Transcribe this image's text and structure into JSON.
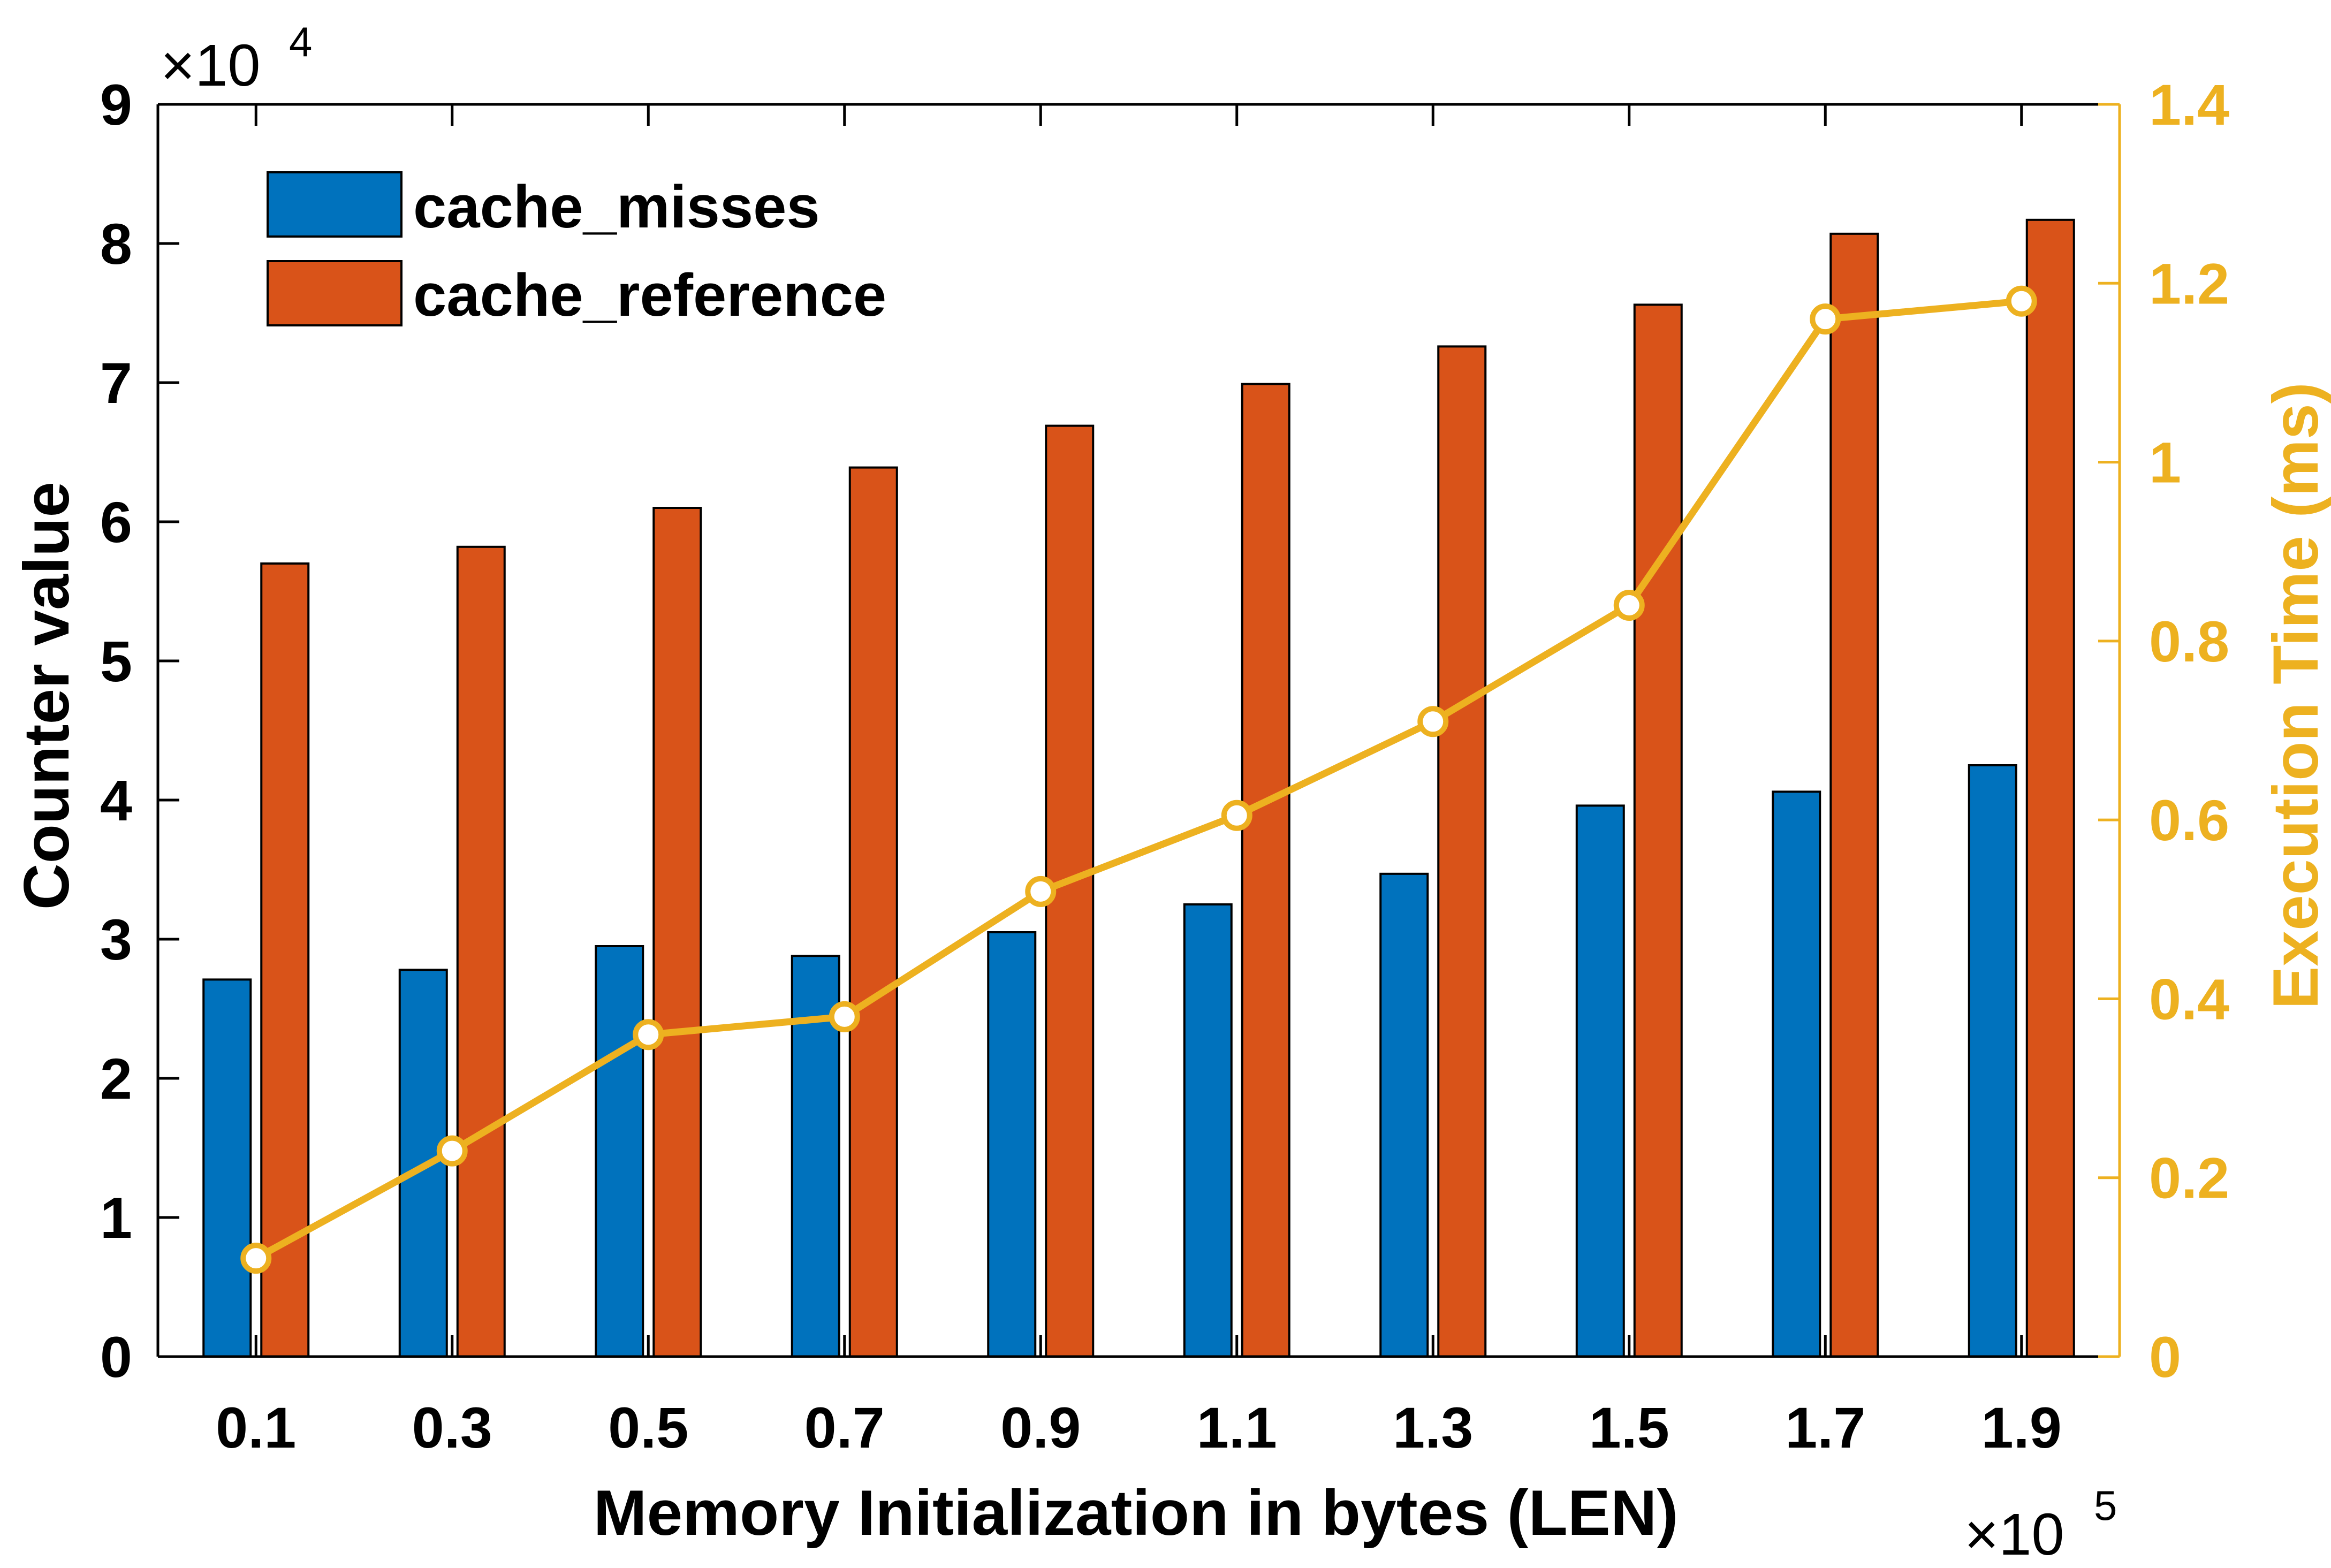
{
  "chart_data": {
    "type": "bar",
    "categories": [
      "0.1",
      "0.3",
      "0.5",
      "0.7",
      "0.9",
      "1.1",
      "1.3",
      "1.5",
      "1.7",
      "1.9"
    ],
    "xlabel": "Memory Initialization in bytes (LEN)",
    "x_exponent": {
      "base": "10",
      "power": "5",
      "prefix": "×"
    },
    "ylabel_left": "Counter value",
    "ylim_left": [
      0,
      90000
    ],
    "yticks_left": [
      "0",
      "1",
      "2",
      "3",
      "4",
      "5",
      "6",
      "7",
      "8",
      "9"
    ],
    "y_exponent_left": {
      "base": "10",
      "power": "4",
      "prefix": "×"
    },
    "ylabel_right": "Execution Time (ms)",
    "ylim_right": [
      0,
      1.4
    ],
    "yticks_right": [
      "0",
      "0.2",
      "0.4",
      "0.6",
      "0.8",
      "1",
      "1.2",
      "1.4"
    ],
    "legend_position": "top-left",
    "series": [
      {
        "name": "cache_misses",
        "axis": "left",
        "type": "bar",
        "color": "#0072BD",
        "values": [
          27100,
          27800,
          29500,
          28800,
          30500,
          32500,
          34700,
          39600,
          40600,
          42500
        ]
      },
      {
        "name": "cache_reference",
        "axis": "left",
        "type": "bar",
        "color": "#D95319",
        "values": [
          57000,
          58200,
          61000,
          63900,
          66900,
          69900,
          72600,
          75600,
          80700,
          81700
        ]
      },
      {
        "axis": "right",
        "type": "line",
        "color": "#EDB120",
        "values": [
          0.11,
          0.23,
          0.36,
          0.38,
          0.52,
          0.605,
          0.71,
          0.84,
          1.16,
          1.18
        ]
      }
    ]
  }
}
